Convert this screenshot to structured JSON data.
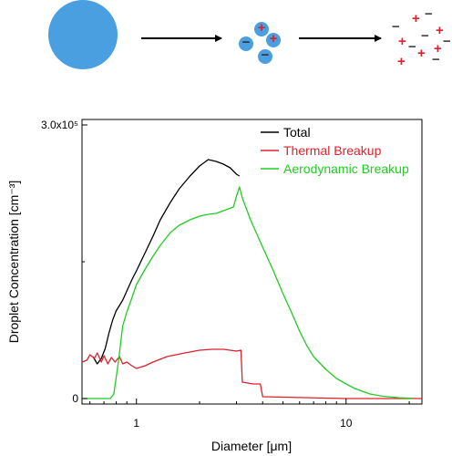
{
  "schematic": {
    "drop_color": "#4a9fe0",
    "droplet_color": "#4a9fe0",
    "positive_sign": "+",
    "negative_sign": "−",
    "positive_color": "#e0202a",
    "negative_color": "#444444"
  },
  "chart_data": {
    "type": "line",
    "xscale": "log",
    "xlim": [
      0.55,
      23
    ],
    "ylim": [
      0,
      300000
    ],
    "xlabel": "Diameter [μm]",
    "ylabel": "Droplet Concentration [cm⁻³]",
    "x_ticks": [
      {
        "value": 1,
        "label": "1"
      },
      {
        "value": 10,
        "label": "10"
      }
    ],
    "y_ticks": [
      {
        "value": 0,
        "label": "0"
      },
      {
        "value": 300000,
        "label": "3.0x10⁵"
      }
    ],
    "legend_position": "top-right",
    "grid": false,
    "series": [
      {
        "name": "Total",
        "color": "#000000",
        "points": [
          [
            0.62,
            46000
          ],
          [
            0.65,
            38000
          ],
          [
            0.68,
            44000
          ],
          [
            0.71,
            55000
          ],
          [
            0.74,
            72000
          ],
          [
            0.77,
            86000
          ],
          [
            0.8,
            96000
          ],
          [
            0.83,
            102000
          ],
          [
            0.86,
            108000
          ],
          [
            0.9,
            118000
          ],
          [
            0.95,
            130000
          ],
          [
            1.0,
            140000
          ],
          [
            1.1,
            160000
          ],
          [
            1.2,
            178000
          ],
          [
            1.3,
            196000
          ],
          [
            1.45,
            215000
          ],
          [
            1.6,
            230000
          ],
          [
            1.8,
            244000
          ],
          [
            2.0,
            255000
          ],
          [
            2.2,
            262000
          ],
          [
            2.4,
            260000
          ],
          [
            2.6,
            257000
          ],
          [
            2.8,
            253000
          ],
          [
            3.0,
            246000
          ],
          [
            3.1,
            244000
          ]
        ]
      },
      {
        "name": "Thermal Breakup",
        "color": "#e0202a",
        "points": [
          [
            0.55,
            40000
          ],
          [
            0.58,
            42000
          ],
          [
            0.6,
            48000
          ],
          [
            0.63,
            44000
          ],
          [
            0.65,
            50000
          ],
          [
            0.68,
            40000
          ],
          [
            0.7,
            47000
          ],
          [
            0.73,
            38000
          ],
          [
            0.76,
            45000
          ],
          [
            0.79,
            40000
          ],
          [
            0.83,
            46000
          ],
          [
            0.86,
            38000
          ],
          [
            0.9,
            40000
          ],
          [
            0.95,
            36000
          ],
          [
            1.0,
            33000
          ],
          [
            1.1,
            36000
          ],
          [
            1.2,
            40000
          ],
          [
            1.4,
            46000
          ],
          [
            1.7,
            50000
          ],
          [
            2.0,
            53000
          ],
          [
            2.3,
            54000
          ],
          [
            2.6,
            54000
          ],
          [
            3.0,
            52000
          ],
          [
            3.15,
            53000
          ],
          [
            3.2,
            18000
          ],
          [
            3.6,
            16000
          ],
          [
            3.9,
            16000
          ],
          [
            4.0,
            2000
          ],
          [
            10,
            0
          ],
          [
            23,
            0
          ]
        ]
      },
      {
        "name": "Aerodynamic Breakup",
        "color": "#22cc22",
        "points": [
          [
            0.55,
            0
          ],
          [
            0.75,
            0
          ],
          [
            0.78,
            5000
          ],
          [
            0.82,
            40000
          ],
          [
            0.86,
            80000
          ],
          [
            0.9,
            95000
          ],
          [
            0.95,
            110000
          ],
          [
            1.0,
            125000
          ],
          [
            1.1,
            142000
          ],
          [
            1.2,
            156000
          ],
          [
            1.3,
            168000
          ],
          [
            1.45,
            182000
          ],
          [
            1.6,
            190000
          ],
          [
            1.8,
            196000
          ],
          [
            2.0,
            200000
          ],
          [
            2.2,
            202000
          ],
          [
            2.4,
            203000
          ],
          [
            2.6,
            206000
          ],
          [
            2.9,
            210000
          ],
          [
            3.0,
            222000
          ],
          [
            3.1,
            232000
          ],
          [
            3.2,
            220000
          ],
          [
            3.5,
            196000
          ],
          [
            4.0,
            166000
          ],
          [
            4.5,
            140000
          ],
          [
            5.0,
            115000
          ],
          [
            5.5,
            94000
          ],
          [
            6.0,
            74000
          ],
          [
            6.5,
            58000
          ],
          [
            7.0,
            46000
          ],
          [
            8.0,
            32000
          ],
          [
            9.0,
            22000
          ],
          [
            10.0,
            16000
          ],
          [
            11.0,
            11000
          ],
          [
            13.0,
            5000
          ],
          [
            15.0,
            2500
          ],
          [
            18.0,
            800
          ],
          [
            21.0,
            200
          ]
        ]
      }
    ]
  }
}
